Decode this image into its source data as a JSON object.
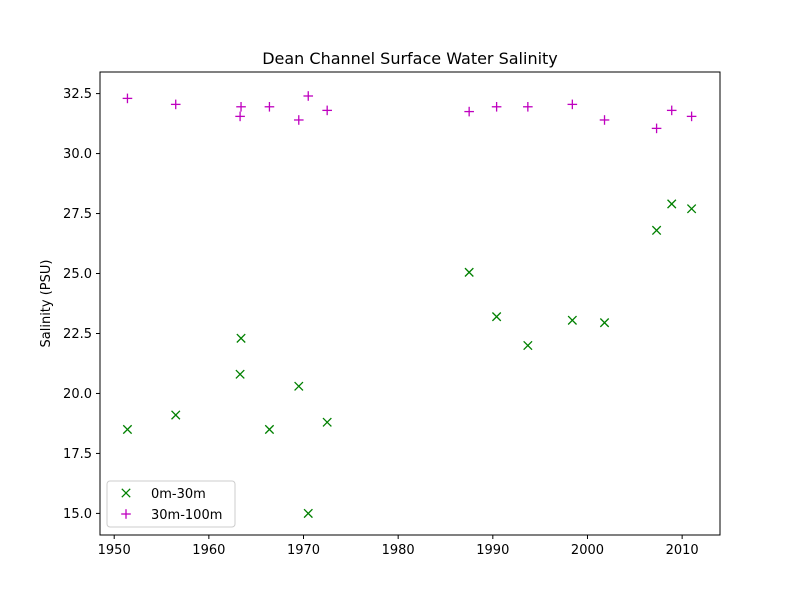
{
  "chart_data": {
    "type": "scatter",
    "title": "Dean Channel Surface Water Salinity",
    "xlabel": "",
    "ylabel": "Salinity (PSU)",
    "xlim": [
      1948.5,
      2014
    ],
    "ylim": [
      14.1,
      33.4
    ],
    "x_ticks": [
      1950,
      1960,
      1970,
      1980,
      1990,
      2000,
      2010
    ],
    "y_ticks": [
      15.0,
      17.5,
      20.0,
      22.5,
      25.0,
      27.5,
      30.0,
      32.5
    ],
    "grid": false,
    "legend_position": "lower-left",
    "series": [
      {
        "name": "0m-30m",
        "marker": "x",
        "color": "#008000",
        "points": [
          [
            1951.4,
            18.5
          ],
          [
            1956.5,
            19.1
          ],
          [
            1963.3,
            20.8
          ],
          [
            1963.4,
            22.3
          ],
          [
            1966.4,
            18.5
          ],
          [
            1969.5,
            20.3
          ],
          [
            1970.5,
            15.0
          ],
          [
            1972.5,
            18.8
          ],
          [
            1987.5,
            25.05
          ],
          [
            1990.4,
            23.2
          ],
          [
            1993.7,
            22.0
          ],
          [
            1998.4,
            23.05
          ],
          [
            2001.8,
            22.95
          ],
          [
            2007.3,
            26.8
          ],
          [
            2008.9,
            27.9
          ],
          [
            2011.0,
            27.7
          ]
        ]
      },
      {
        "name": "30m-100m",
        "marker": "+",
        "color": "#bf00bf",
        "points": [
          [
            1951.4,
            32.3
          ],
          [
            1956.5,
            32.05
          ],
          [
            1963.3,
            31.55
          ],
          [
            1963.4,
            31.95
          ],
          [
            1966.4,
            31.95
          ],
          [
            1969.5,
            31.4
          ],
          [
            1970.5,
            32.4
          ],
          [
            1972.5,
            31.8
          ],
          [
            1987.5,
            31.75
          ],
          [
            1990.4,
            31.95
          ],
          [
            1993.7,
            31.95
          ],
          [
            1998.4,
            32.05
          ],
          [
            2001.8,
            31.4
          ],
          [
            2007.3,
            31.05
          ],
          [
            2008.9,
            31.8
          ],
          [
            2011.0,
            31.55
          ]
        ]
      }
    ]
  }
}
